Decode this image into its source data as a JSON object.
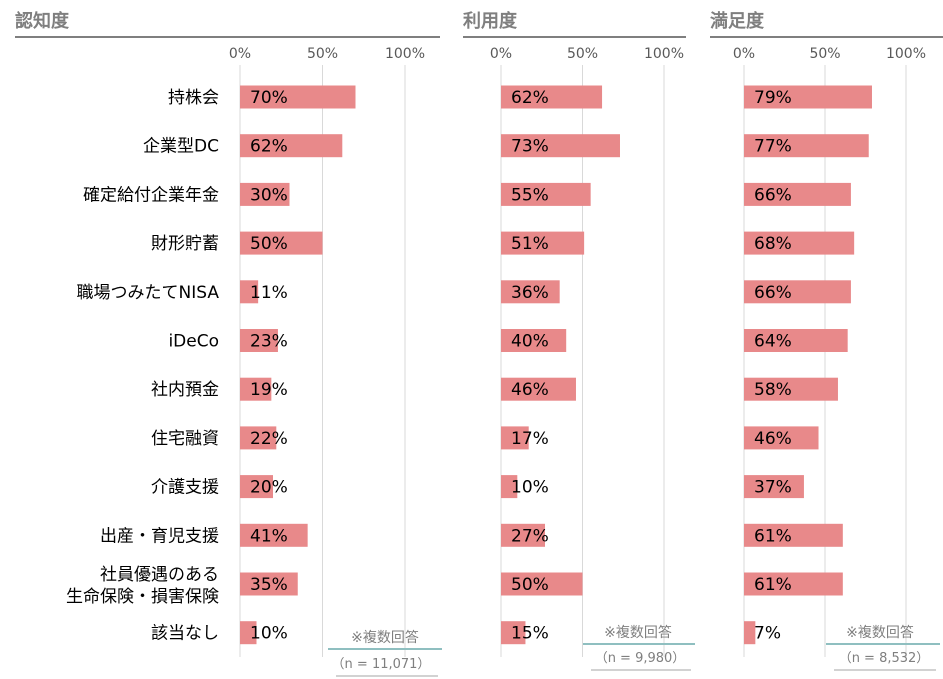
{
  "chart_data": {
    "type": "bar",
    "orientation": "horizontal",
    "xlim": [
      0,
      100
    ],
    "ticks": [
      "0%",
      "50%",
      "100%"
    ],
    "categories": [
      [
        "持株会"
      ],
      [
        "企業型DC"
      ],
      [
        "確定給付企業年金"
      ],
      [
        "財形貯蓄"
      ],
      [
        "職場つみたてNISA"
      ],
      [
        "iDeCo"
      ],
      [
        "社内預金"
      ],
      [
        "住宅融資"
      ],
      [
        "介護支援"
      ],
      [
        "出産・育児支援"
      ],
      [
        "社員優遇のある",
        "生命保険・損害保険"
      ],
      [
        "該当なし"
      ]
    ],
    "series": [
      {
        "name": "認知度",
        "values": [
          70,
          62,
          30,
          50,
          11,
          23,
          19,
          22,
          20,
          41,
          35,
          10
        ],
        "note": "※複数回答",
        "n_label": "（n = 11,071）"
      },
      {
        "name": "利用度",
        "values": [
          62,
          73,
          55,
          51,
          36,
          40,
          46,
          17,
          10,
          27,
          50,
          15
        ],
        "note": "※複数回答",
        "n_label": "（n = 9,980）"
      },
      {
        "name": "満足度",
        "values": [
          79,
          77,
          66,
          68,
          66,
          64,
          58,
          46,
          37,
          61,
          61,
          7
        ],
        "note": "※複数回答",
        "n_label": "（n = 8,532）"
      }
    ],
    "grid": true,
    "colors": {
      "bar": "#e8898a",
      "grid": "#d9d9d9",
      "title_rule": "#7f7f7f",
      "note_rule": "#8fbfc0"
    }
  }
}
